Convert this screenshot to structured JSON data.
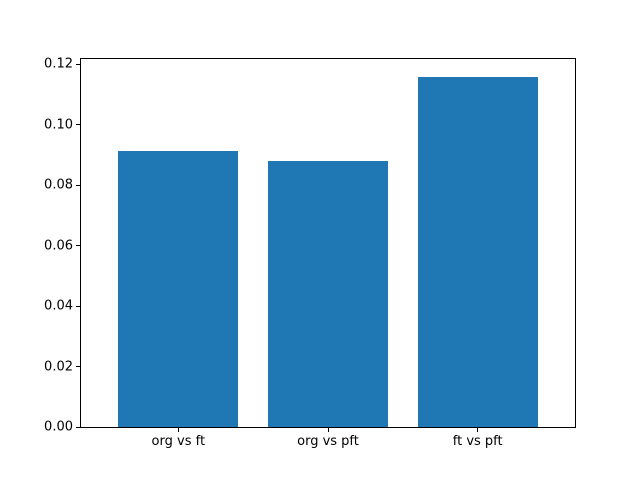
{
  "chart_data": {
    "type": "bar",
    "title": "",
    "xlabel": "",
    "ylabel": "",
    "categories": [
      "org vs ft",
      "org vs pft",
      "ft vs pft"
    ],
    "values": [
      0.0915,
      0.088,
      0.116
    ],
    "ylim": [
      0,
      0.1218
    ],
    "yticks": [
      0.0,
      0.02,
      0.04,
      0.06,
      0.08,
      0.1,
      0.12
    ],
    "ytick_labels": [
      "0.00",
      "0.02",
      "0.04",
      "0.06",
      "0.08",
      "0.10",
      "0.12"
    ],
    "bar_color": "#1f77b4",
    "bar_width_fraction": 0.8,
    "grid": false,
    "legend": null,
    "background_color": "#ffffff",
    "axis_color": "#000000"
  }
}
